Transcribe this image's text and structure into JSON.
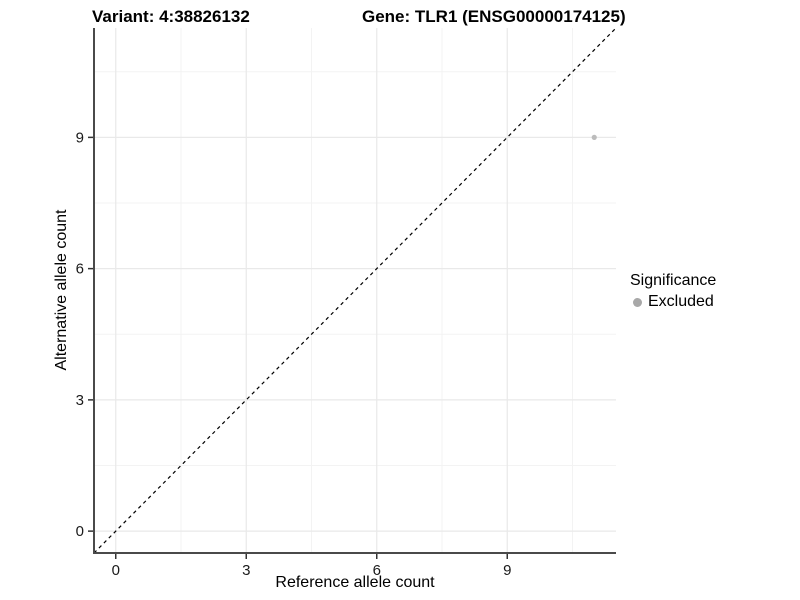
{
  "chart_data": {
    "type": "scatter",
    "titles": {
      "left": "Variant: 4:38826132",
      "right": "Gene: TLR1 (ENSG00000174125)"
    },
    "xlabel": "Reference allele count",
    "ylabel": "Alternative allele count",
    "xlim": [
      -0.5,
      11.5
    ],
    "ylim": [
      -0.5,
      11.5
    ],
    "xticks": [
      0,
      3,
      6,
      9
    ],
    "yticks": [
      0,
      3,
      6,
      9
    ],
    "xticks_minor": [
      1.5,
      4.5,
      7.5,
      10.5
    ],
    "yticks_minor": [
      1.5,
      4.5,
      7.5,
      10.5
    ],
    "grid": true,
    "identity_line": {
      "show": true,
      "style": "dashed"
    },
    "series": [
      {
        "name": "Excluded",
        "color": "#bcbcbc",
        "points": [
          {
            "x": 11,
            "y": 9
          }
        ]
      }
    ],
    "legend": {
      "title": "Significance",
      "position": "right",
      "items": [
        {
          "label": "Excluded",
          "color": "#a8a8a8"
        }
      ]
    }
  },
  "colors": {
    "background": "#ffffff",
    "grid_major": "#e9e9e9",
    "grid_minor": "#f3f3f3",
    "axis_line": "#4a4a4a",
    "tick_mark": "#333333",
    "tick_label": "#1a1a1a",
    "identity_line": "#000000"
  }
}
